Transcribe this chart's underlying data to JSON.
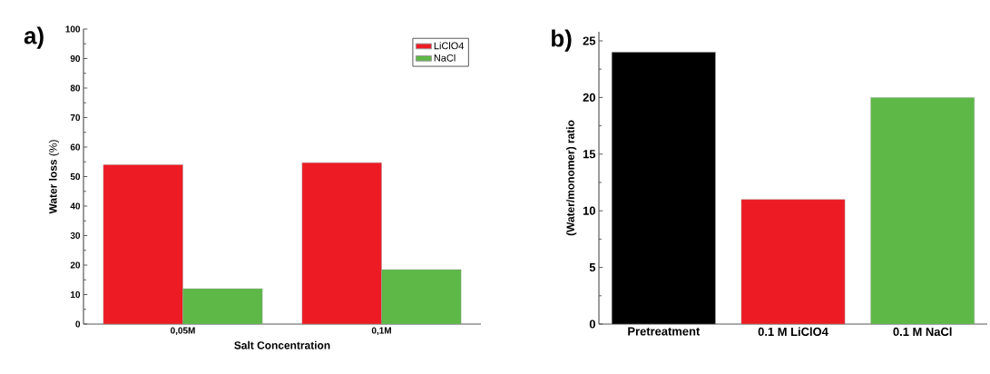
{
  "chart_data": [
    {
      "type": "bar",
      "title": "a)",
      "xlabel": "Salt Concentration",
      "ylabel": "**Water loss** (%)",
      "categories": [
        "0,05M",
        "0,1M"
      ],
      "series": [
        {
          "name": "LiClO4",
          "color": "#ed1c24",
          "values": [
            54,
            54.7
          ]
        },
        {
          "name": "NaCl",
          "color": "#5db847",
          "values": [
            12,
            18.5
          ]
        }
      ],
      "ylim": [
        0,
        100
      ],
      "yticks": [
        0,
        10,
        20,
        30,
        40,
        50,
        60,
        70,
        80,
        90,
        100
      ],
      "legend": "top right"
    },
    {
      "type": "bar",
      "title": "b)",
      "ylabel": "(Water/monomer) ratio",
      "categories": [
        "Pretreatment",
        "0.1 M LiClO4",
        "0.1 M NaCl"
      ],
      "values": [
        24,
        11,
        20
      ],
      "colors": [
        "#000000",
        "#ed1c24",
        "#5db847"
      ],
      "ylim": [
        0,
        25.8
      ],
      "yticks": [
        0,
        5,
        10,
        15,
        20,
        25
      ]
    }
  ]
}
